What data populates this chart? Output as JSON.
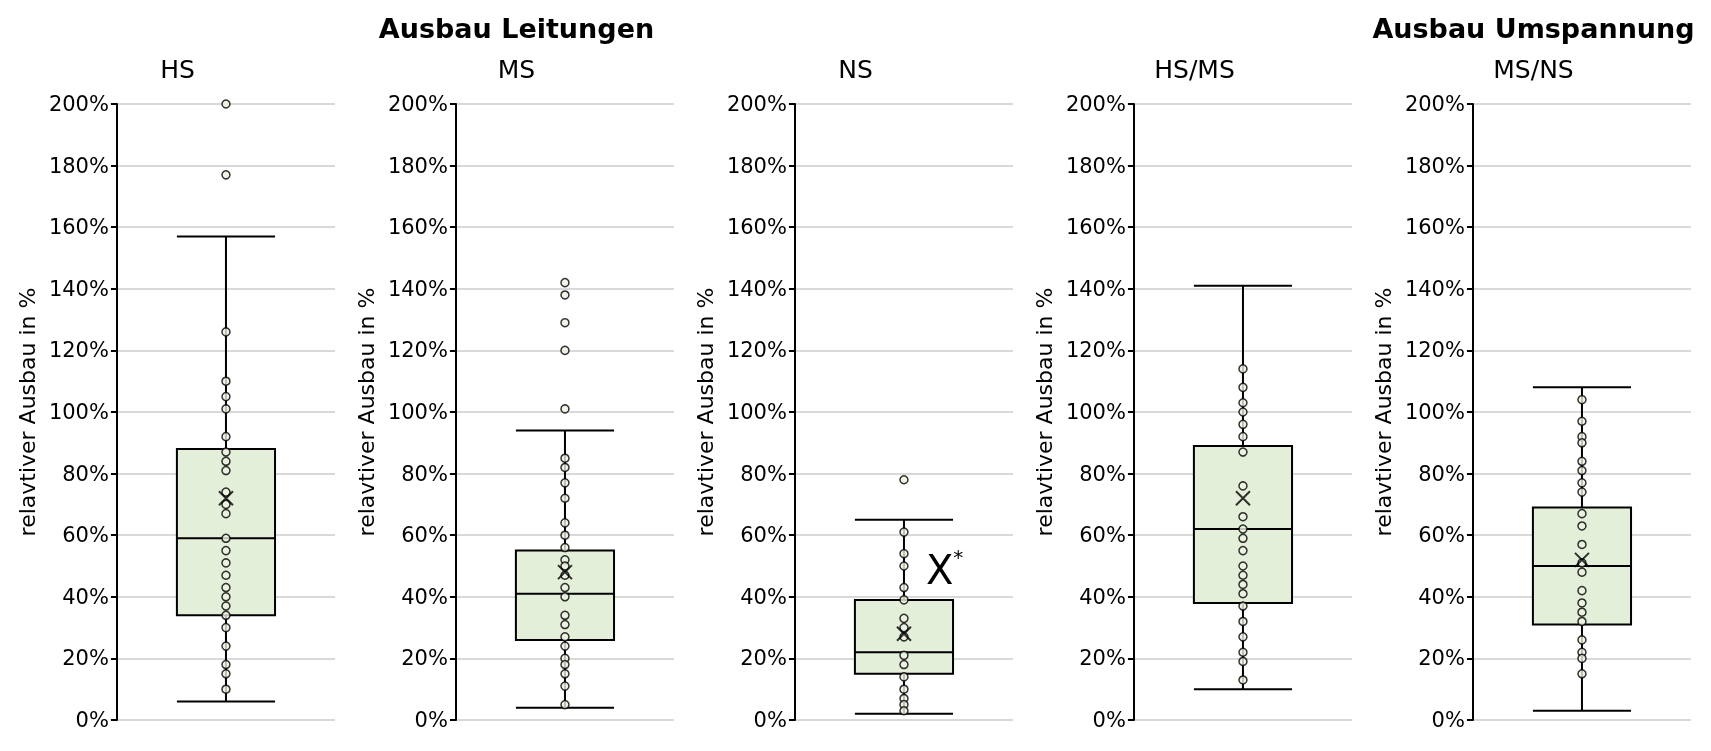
{
  "chart_data": [
    {
      "type": "box",
      "subtitle": "HS",
      "ylabel": "relavtiver Ausbau in %",
      "categories": [
        null
      ],
      "ylim": [
        0,
        200
      ],
      "yticks": [
        {
          "value": 0,
          "label": "0%"
        },
        {
          "value": 20,
          "label": "20%"
        },
        {
          "value": 40,
          "label": "40%"
        },
        {
          "value": 60,
          "label": "60%"
        },
        {
          "value": 80,
          "label": "80%"
        },
        {
          "value": 100,
          "label": "100%"
        },
        {
          "value": 120,
          "label": "120%"
        },
        {
          "value": 140,
          "label": "140%"
        },
        {
          "value": 160,
          "label": "160%"
        },
        {
          "value": 180,
          "label": "180%"
        },
        {
          "value": 200,
          "label": "200%"
        }
      ],
      "grid": "y",
      "series": [
        {
          "type": "box",
          "color": "#e4efd9",
          "boxes": [
            {
              "low": 6,
              "q1": 34,
              "median": 59,
              "q3": 88,
              "high": 157,
              "mean": 72,
              "outliers": [
                200,
                177
              ]
            }
          ]
        },
        {
          "type": "scatter",
          "color": "#eef3e2",
          "marker": "circle",
          "x": [
            null,
            null,
            null,
            null,
            null,
            null,
            null,
            null,
            null,
            null,
            null,
            null,
            null,
            null,
            null,
            null,
            null,
            null,
            null,
            null,
            null,
            null,
            null,
            null
          ],
          "values": [
            126,
            110,
            105,
            101,
            92,
            87,
            84,
            81,
            74,
            70,
            67,
            59,
            55,
            51,
            47,
            43,
            40,
            37,
            34,
            30,
            24,
            18,
            15,
            10
          ]
        }
      ]
    },
    {
      "type": "box",
      "title": "Ausbau Leitungen",
      "subtitle": "MS",
      "ylabel": "relavtiver Ausbau in %",
      "categories": [
        null
      ],
      "ylim": [
        0,
        200
      ],
      "yticks": [
        {
          "value": 0,
          "label": "0%"
        },
        {
          "value": 20,
          "label": "20%"
        },
        {
          "value": 40,
          "label": "40%"
        },
        {
          "value": 60,
          "label": "60%"
        },
        {
          "value": 80,
          "label": "80%"
        },
        {
          "value": 100,
          "label": "100%"
        },
        {
          "value": 120,
          "label": "120%"
        },
        {
          "value": 140,
          "label": "140%"
        },
        {
          "value": 160,
          "label": "160%"
        },
        {
          "value": 180,
          "label": "180%"
        },
        {
          "value": 200,
          "label": "200%"
        }
      ],
      "grid": "y",
      "series": [
        {
          "type": "box",
          "color": "#e4efd9",
          "boxes": [
            {
              "low": 4,
              "q1": 26,
              "median": 41,
              "q3": 55,
              "high": 94,
              "mean": 48,
              "outliers": [
                142,
                138,
                129,
                120,
                101
              ]
            }
          ]
        },
        {
          "type": "scatter",
          "color": "#eef3e2",
          "marker": "circle",
          "x": [
            null,
            null,
            null,
            null,
            null,
            null,
            null,
            null,
            null,
            null,
            null,
            null,
            null,
            null,
            null,
            null,
            null,
            null,
            null,
            null,
            null
          ],
          "values": [
            85,
            82,
            77,
            72,
            64,
            60,
            56,
            52,
            50,
            47,
            43,
            40,
            34,
            31,
            27,
            24,
            20,
            18,
            15,
            11,
            5
          ]
        }
      ]
    },
    {
      "type": "box",
      "subtitle": "NS",
      "ylabel": "relavtiver Ausbau in %",
      "categories": [
        null
      ],
      "ylim": [
        0,
        200
      ],
      "yticks": [
        {
          "value": 0,
          "label": "0%"
        },
        {
          "value": 20,
          "label": "20%"
        },
        {
          "value": 40,
          "label": "40%"
        },
        {
          "value": 60,
          "label": "60%"
        },
        {
          "value": 80,
          "label": "80%"
        },
        {
          "value": 100,
          "label": "100%"
        },
        {
          "value": 120,
          "label": "120%"
        },
        {
          "value": 140,
          "label": "140%"
        },
        {
          "value": 160,
          "label": "160%"
        },
        {
          "value": 180,
          "label": "180%"
        },
        {
          "value": 200,
          "label": "200%"
        }
      ],
      "grid": "y",
      "annotations": [
        "X$^{*}$"
      ],
      "series": [
        {
          "type": "box",
          "color": "#e4efd9",
          "boxes": [
            {
              "low": 2,
              "q1": 15,
              "median": 22,
              "q3": 39,
              "high": 65,
              "mean": 28,
              "outliers": [
                78
              ]
            }
          ]
        },
        {
          "type": "scatter",
          "color": "#eef3e2",
          "marker": "circle",
          "x": [
            null,
            null,
            null,
            null,
            null,
            null,
            null,
            null,
            null,
            null,
            null,
            null,
            null,
            null,
            null
          ],
          "values": [
            61,
            54,
            50,
            43,
            39,
            33,
            30,
            27,
            21,
            18,
            14,
            10,
            7,
            5,
            3
          ]
        }
      ]
    },
    {
      "type": "box",
      "subtitle": "HS/MS",
      "ylabel": "relavtiver Ausbau in %",
      "categories": [
        null
      ],
      "ylim": [
        0,
        200
      ],
      "yticks": [
        {
          "value": 0,
          "label": "0%"
        },
        {
          "value": 20,
          "label": "20%"
        },
        {
          "value": 40,
          "label": "40%"
        },
        {
          "value": 60,
          "label": "60%"
        },
        {
          "value": 80,
          "label": "80%"
        },
        {
          "value": 100,
          "label": "100%"
        },
        {
          "value": 120,
          "label": "120%"
        },
        {
          "value": 140,
          "label": "140%"
        },
        {
          "value": 160,
          "label": "160%"
        },
        {
          "value": 180,
          "label": "180%"
        },
        {
          "value": 200,
          "label": "200%"
        }
      ],
      "grid": "y",
      "series": [
        {
          "type": "box",
          "color": "#e4efd9",
          "boxes": [
            {
              "low": 10,
              "q1": 38,
              "median": 62,
              "q3": 89,
              "high": 141,
              "mean": 72
            }
          ]
        },
        {
          "type": "scatter",
          "color": "#eef3e2",
          "marker": "circle",
          "x": [
            null,
            null,
            null,
            null,
            null,
            null,
            null,
            null,
            null,
            null,
            null,
            null,
            null,
            null,
            null,
            null,
            null,
            null,
            null,
            null,
            null,
            null
          ],
          "values": [
            114,
            108,
            103,
            100,
            96,
            92,
            87,
            76,
            66,
            62,
            59,
            55,
            50,
            47,
            44,
            41,
            37,
            32,
            27,
            22,
            19,
            13
          ]
        }
      ]
    },
    {
      "type": "box",
      "title": "Ausbau Umspannung",
      "subtitle": "MS/NS",
      "ylabel": "relavtiver Ausbau in %",
      "categories": [
        null
      ],
      "ylim": [
        0,
        200
      ],
      "yticks": [
        {
          "value": 0,
          "label": "0%"
        },
        {
          "value": 20,
          "label": "20%"
        },
        {
          "value": 40,
          "label": "40%"
        },
        {
          "value": 60,
          "label": "60%"
        },
        {
          "value": 80,
          "label": "80%"
        },
        {
          "value": 100,
          "label": "100%"
        },
        {
          "value": 120,
          "label": "120%"
        },
        {
          "value": 140,
          "label": "140%"
        },
        {
          "value": 160,
          "label": "160%"
        },
        {
          "value": 180,
          "label": "180%"
        },
        {
          "value": 200,
          "label": "200%"
        }
      ],
      "grid": "y",
      "series": [
        {
          "type": "box",
          "color": "#e4efd9",
          "boxes": [
            {
              "low": 3,
              "q1": 31,
              "median": 50,
              "q3": 69,
              "high": 108,
              "mean": 52
            }
          ]
        },
        {
          "type": "scatter",
          "color": "#eef3e2",
          "marker": "circle",
          "x": [
            null,
            null,
            null,
            null,
            null,
            null,
            null,
            null,
            null,
            null,
            null,
            null,
            null,
            null,
            null,
            null,
            null,
            null,
            null,
            null,
            null
          ],
          "values": [
            104,
            97,
            92,
            90,
            84,
            81,
            77,
            74,
            67,
            63,
            57,
            51,
            48,
            42,
            38,
            35,
            32,
            26,
            22,
            20,
            15
          ]
        }
      ]
    }
  ]
}
